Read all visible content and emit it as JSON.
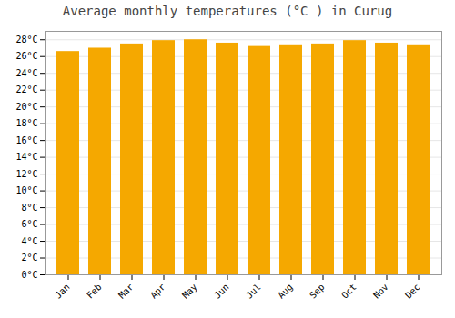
{
  "chart_data": {
    "type": "bar",
    "title": "Average monthly temperatures (°C ) in Curug",
    "categories": [
      "Jan",
      "Feb",
      "Mar",
      "Apr",
      "May",
      "Jun",
      "Jul",
      "Aug",
      "Sep",
      "Oct",
      "Nov",
      "Dec"
    ],
    "values": [
      26.6,
      27.0,
      27.5,
      27.9,
      28.0,
      27.6,
      27.2,
      27.4,
      27.5,
      27.9,
      27.6,
      27.4
    ],
    "color": "#F5A800",
    "ylim": [
      0,
      29
    ],
    "yticks": [
      {
        "value": 0,
        "label": "0°C"
      },
      {
        "value": 2,
        "label": "2°C"
      },
      {
        "value": 4,
        "label": "4°C"
      },
      {
        "value": 6,
        "label": "6°C"
      },
      {
        "value": 8,
        "label": "8°C"
      },
      {
        "value": 10,
        "label": "10°C"
      },
      {
        "value": 12,
        "label": "12°C"
      },
      {
        "value": 14,
        "label": "14°C"
      },
      {
        "value": 16,
        "label": "16°C"
      },
      {
        "value": 18,
        "label": "18°C"
      },
      {
        "value": 20,
        "label": "20°C"
      },
      {
        "value": 22,
        "label": "22°C"
      },
      {
        "value": 24,
        "label": "24°C"
      },
      {
        "value": 26,
        "label": "26°C"
      },
      {
        "value": 28,
        "label": "28°C"
      }
    ],
    "grid": true
  }
}
